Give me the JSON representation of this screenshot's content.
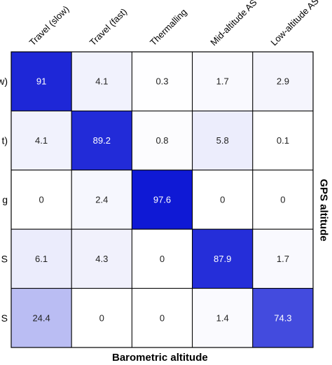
{
  "chart_data": {
    "type": "heatmap",
    "title": "",
    "xlabel": "Barometric altitude",
    "ylabel": "GPS altitude",
    "col_labels": [
      "Travel (slow)",
      "Travel (fast)",
      "Thermalling",
      "Mid-altitude AS",
      "Low-altitude AS"
    ],
    "row_labels": [
      "w)",
      "t)",
      "g",
      "S",
      "S"
    ],
    "values": [
      [
        91,
        4.1,
        0.3,
        1.7,
        2.9
      ],
      [
        4.1,
        89.2,
        0.8,
        5.8,
        0.1
      ],
      [
        0,
        2.4,
        97.6,
        0,
        0
      ],
      [
        6.1,
        4.3,
        0,
        87.9,
        1.7
      ],
      [
        24.4,
        0,
        0,
        1.4,
        74.3
      ]
    ],
    "value_range": [
      0,
      100
    ],
    "colors": {
      "low": "#ffffff",
      "high": "#0a14d4",
      "text_dark": "#222222",
      "text_light": "#ffffff",
      "grid": "#000000"
    }
  }
}
